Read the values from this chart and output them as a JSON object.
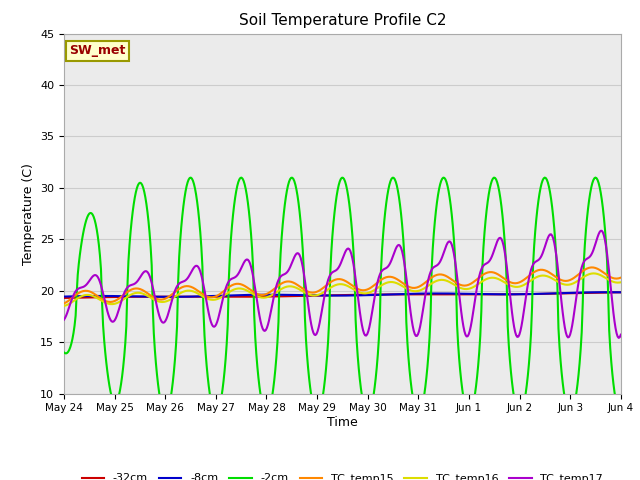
{
  "title": "Soil Temperature Profile C2",
  "xlabel": "Time",
  "ylabel": "Temperature (C)",
  "ylim": [
    10,
    45
  ],
  "yticks": [
    10,
    15,
    20,
    25,
    30,
    35,
    40,
    45
  ],
  "n_points": 528,
  "series": {
    "-32cm": {
      "color": "#cc0000",
      "linewidth": 1.5
    },
    "-8cm": {
      "color": "#0000cc",
      "linewidth": 1.5
    },
    "-2cm": {
      "color": "#00dd00",
      "linewidth": 1.5
    },
    "TC_temp15": {
      "color": "#ff8800",
      "linewidth": 1.5
    },
    "TC_temp16": {
      "color": "#dddd00",
      "linewidth": 1.5
    },
    "TC_temp17": {
      "color": "#aa00cc",
      "linewidth": 1.5
    }
  },
  "tick_labels": [
    "May 24",
    "May 25",
    "May 26",
    "May 27",
    "May 28",
    "May 29",
    "May 30",
    "May 31",
    "Jun 1",
    "Jun 2",
    "Jun 3",
    "Jun 4"
  ],
  "grid_color": "#cccccc",
  "bg_color": "#ebebeb",
  "annotation_text": "SW_met",
  "annotation_color": "#990000",
  "annotation_bg": "#ffffcc",
  "annotation_border": "#999900"
}
